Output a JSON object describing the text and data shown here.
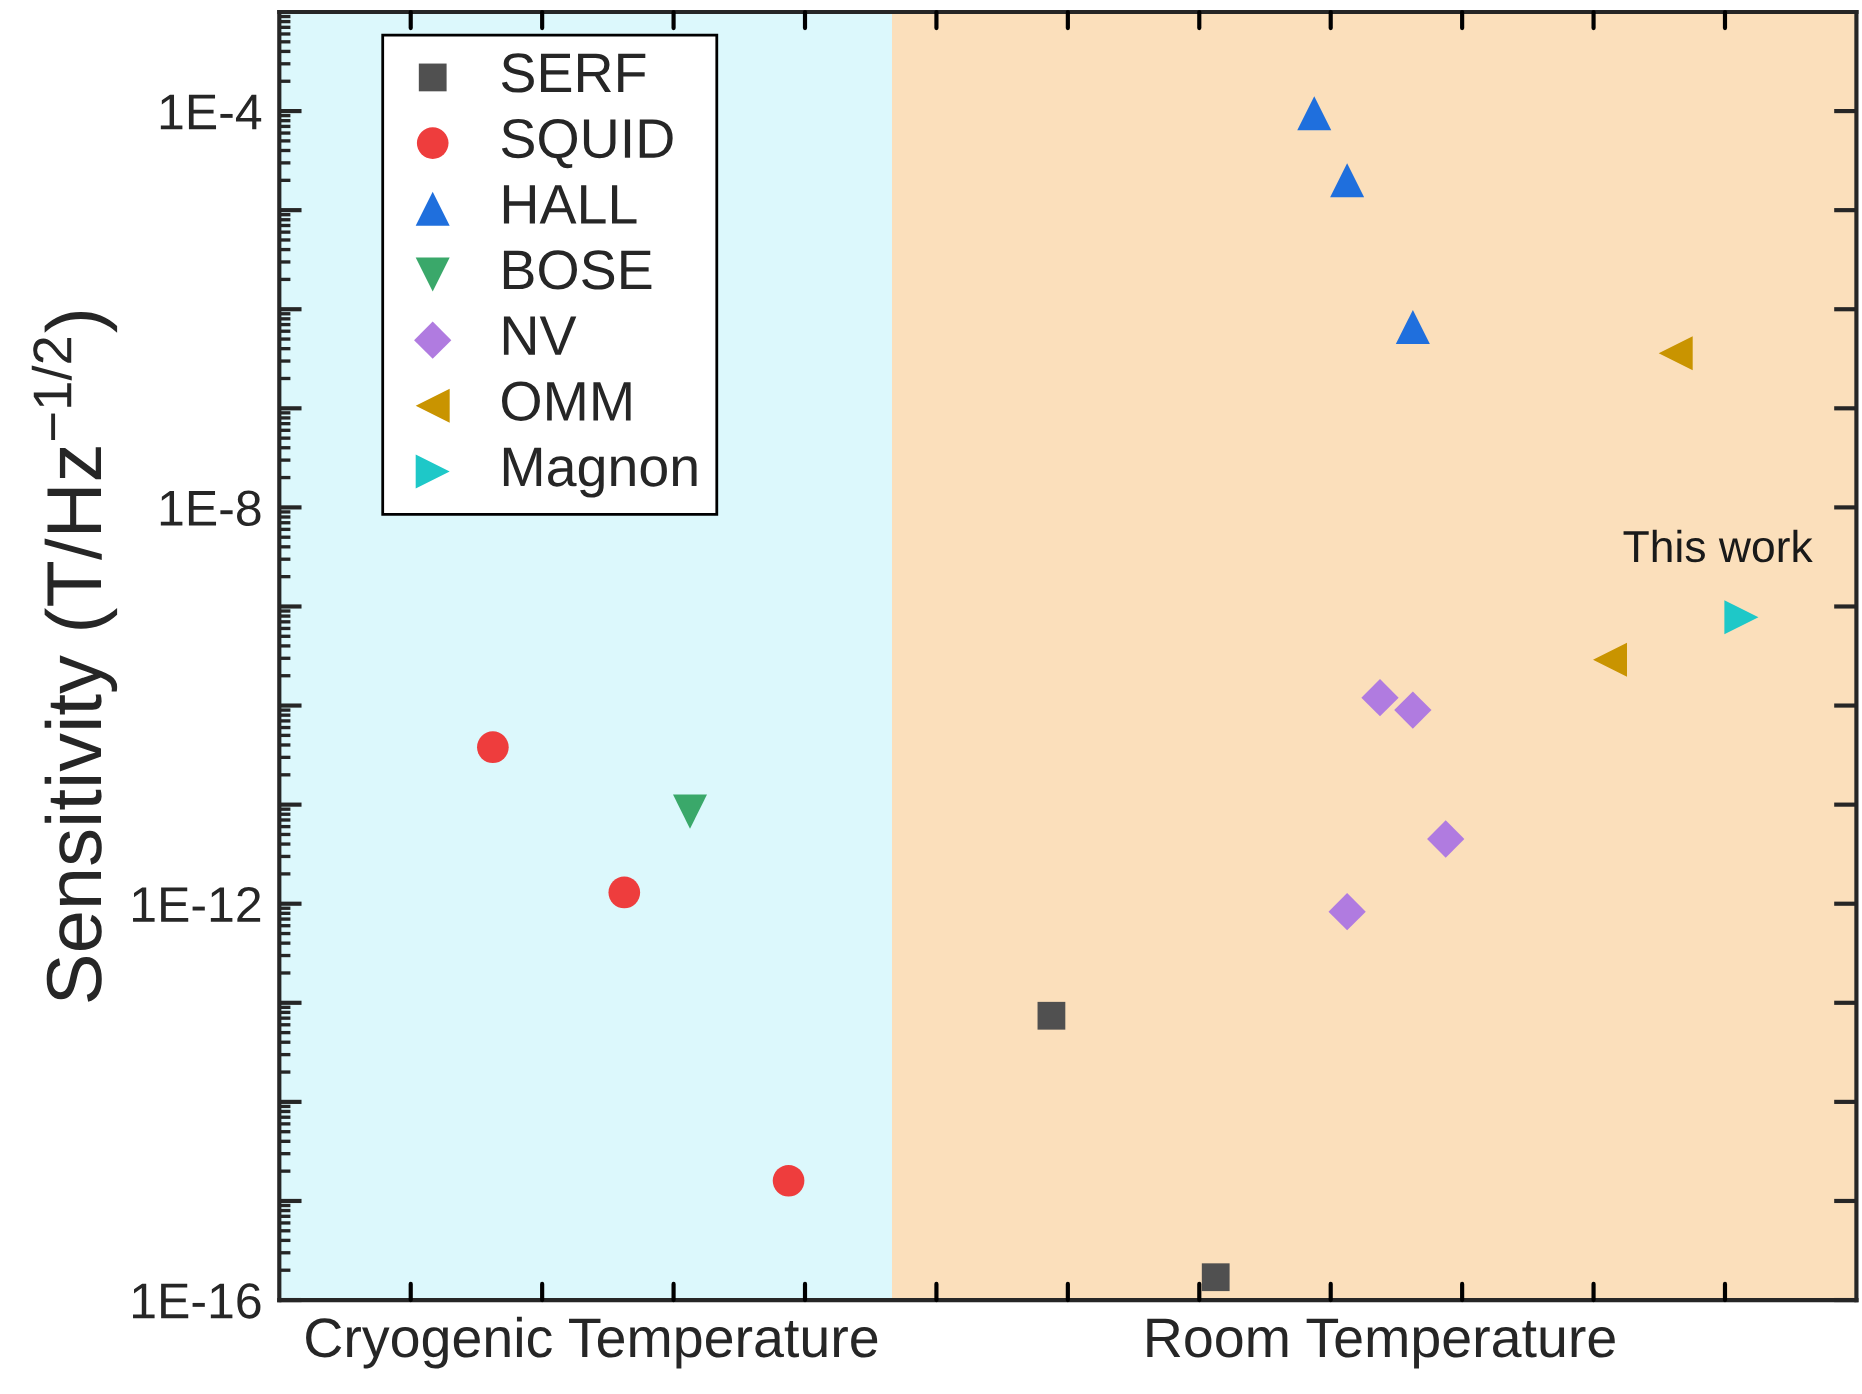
{
  "chart_data": {
    "type": "scatter",
    "ylabel": "Sensitivity (T/Hz$^{−1/2}$)",
    "log": "y",
    "legend": "top left",
    "grid": false,
    "categories": [
      null,
      null,
      null,
      null,
      null,
      null,
      null,
      null,
      null,
      "Cryogenic Temperature",
      null,
      null,
      null,
      null,
      null,
      null,
      null,
      null,
      null,
      null,
      null,
      null,
      null,
      null,
      null,
      null,
      null,
      null,
      null,
      null,
      null,
      null,
      null,
      "Room Temperature",
      null,
      null,
      null,
      null,
      null,
      null,
      null,
      null,
      null,
      null,
      null,
      null,
      null,
      null
    ],
    "ylim": [
      1e-16,
      0.001
    ],
    "yticks": [
      {
        "value": 1e-16,
        "label": "1E-16"
      },
      {
        "value": 1e-15,
        "label": null
      },
      {
        "value": 1e-14,
        "label": null
      },
      {
        "value": 1e-13,
        "label": null
      },
      {
        "value": 1e-12,
        "label": "1E-12"
      },
      {
        "value": 1e-11,
        "label": null
      },
      {
        "value": 1e-10,
        "label": null
      },
      {
        "value": 1e-09,
        "label": null
      },
      {
        "value": 1e-08,
        "label": "1E-8"
      },
      {
        "value": 1e-07,
        "label": null
      },
      {
        "value": 1e-06,
        "label": null
      },
      {
        "value": 1e-05,
        "label": null
      },
      {
        "value": 0.0001,
        "label": "1E-4"
      }
    ],
    "series": [
      {
        "name": "SERF",
        "color": "#505050",
        "marker": "square",
        "values": [
          null,
          null,
          null,
          null,
          null,
          null,
          null,
          null,
          null,
          null,
          null,
          null,
          null,
          null,
          null,
          null,
          null,
          null,
          null,
          null,
          null,
          null,
          null,
          7.4e-14,
          null,
          null,
          null,
          null,
          1.7e-16,
          null,
          null,
          null,
          null,
          null,
          null,
          null,
          null,
          null,
          null,
          null,
          null,
          null,
          null,
          null,
          null,
          null,
          null,
          null
        ]
      },
      {
        "name": "SQUID",
        "color": "#ee3d3d",
        "marker": "circle",
        "values": [
          null,
          null,
          null,
          null,
          null,
          null,
          3.8e-11,
          null,
          null,
          null,
          1.3e-12,
          null,
          null,
          null,
          null,
          1.6e-15,
          null,
          null,
          null,
          null,
          null,
          null,
          null,
          null,
          null,
          null,
          null,
          null,
          null,
          null,
          null,
          null,
          null,
          null,
          null,
          null,
          null,
          null,
          null,
          null,
          null,
          null,
          null,
          null,
          null,
          null,
          null,
          null
        ]
      },
      {
        "name": "HALL",
        "color": "#1f6fdd",
        "marker": "triangle",
        "values": [
          null,
          null,
          null,
          null,
          null,
          null,
          null,
          null,
          null,
          null,
          null,
          null,
          null,
          null,
          null,
          null,
          null,
          null,
          null,
          null,
          null,
          null,
          null,
          null,
          null,
          null,
          null,
          null,
          null,
          null,
          null,
          9.5e-05,
          2e-05,
          null,
          6.6e-07,
          null,
          null,
          null,
          null,
          null,
          null,
          null,
          null,
          null,
          null,
          null,
          null,
          null
        ]
      },
      {
        "name": "BOSE",
        "color": "#3aa86a",
        "marker": "triangle_down",
        "values": [
          null,
          null,
          null,
          null,
          null,
          null,
          null,
          null,
          null,
          null,
          null,
          null,
          8.5e-12,
          null,
          null,
          null,
          null,
          null,
          null,
          null,
          null,
          null,
          null,
          null,
          null,
          null,
          null,
          null,
          null,
          null,
          null,
          null,
          null,
          null,
          null,
          null,
          null,
          null,
          null,
          null,
          null,
          null,
          null,
          null,
          null,
          null,
          null,
          null
        ]
      },
      {
        "name": "NV",
        "color": "#b07be0",
        "marker": "diamond",
        "values": [
          null,
          null,
          null,
          null,
          null,
          null,
          null,
          null,
          null,
          null,
          null,
          null,
          null,
          null,
          null,
          null,
          null,
          null,
          null,
          null,
          null,
          null,
          null,
          null,
          null,
          null,
          null,
          null,
          null,
          null,
          null,
          null,
          8.3e-13,
          1.2e-10,
          9e-11,
          4.5e-12,
          null,
          null,
          null,
          null,
          null,
          null,
          null,
          null,
          null,
          null,
          null,
          null
        ]
      },
      {
        "name": "OMM",
        "color": "#c99400",
        "marker": "triangle_left",
        "values": [
          null,
          null,
          null,
          null,
          null,
          null,
          null,
          null,
          null,
          null,
          null,
          null,
          null,
          null,
          null,
          null,
          null,
          null,
          null,
          null,
          null,
          null,
          null,
          null,
          null,
          null,
          null,
          null,
          null,
          null,
          null,
          null,
          null,
          null,
          null,
          null,
          null,
          null,
          null,
          null,
          2.9e-10,
          null,
          3.6e-07,
          null,
          null,
          null,
          null,
          null
        ]
      },
      {
        "name": "Magnon",
        "color": "#1ec8c8",
        "marker": "triangle_right",
        "values": [
          null,
          null,
          null,
          null,
          null,
          null,
          null,
          null,
          null,
          null,
          null,
          null,
          null,
          null,
          null,
          null,
          null,
          null,
          null,
          null,
          null,
          null,
          null,
          null,
          null,
          null,
          null,
          null,
          null,
          null,
          null,
          null,
          null,
          null,
          null,
          null,
          null,
          null,
          null,
          null,
          null,
          null,
          null,
          null,
          7.8e-10,
          null,
          null,
          null
        ]
      }
    ],
    "annotations": [
      "This work"
    ]
  }
}
